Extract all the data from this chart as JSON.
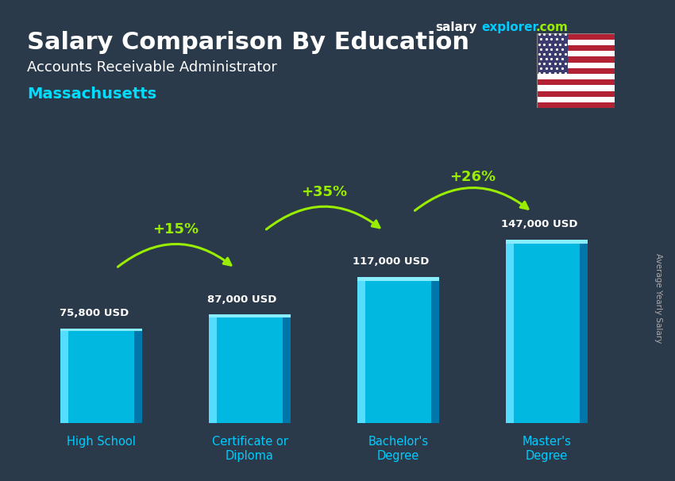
{
  "title_line1": "Salary Comparison By Education",
  "subtitle": "Accounts Receivable Administrator",
  "location": "Massachusetts",
  "ylabel": "Average Yearly Salary",
  "categories": [
    "High School",
    "Certificate or\nDiploma",
    "Bachelor's\nDegree",
    "Master's\nDegree"
  ],
  "values": [
    75800,
    87000,
    117000,
    147000
  ],
  "value_labels": [
    "75,800 USD",
    "87,000 USD",
    "117,000 USD",
    "147,000 USD"
  ],
  "pct_labels": [
    "+15%",
    "+35%",
    "+26%"
  ],
  "bar_color_main": "#00aadd",
  "bar_color_left": "#00ccff",
  "bar_color_right": "#0077aa",
  "bar_color_top": "#55ddff",
  "bg_color": "#2a3a4a",
  "title_color": "#ffffff",
  "subtitle_color": "#ffffff",
  "location_color": "#00ddff",
  "value_label_color": "#ffffff",
  "pct_color": "#99ee00",
  "arrow_color": "#99ee00",
  "ylabel_color": "#aaaaaa",
  "watermark_salary_color": "#ffffff",
  "watermark_explorer_color": "#00ccff",
  "watermark_com_color": "#99ee00",
  "bar_width": 0.55,
  "ylim": [
    0,
    200000
  ],
  "bar_3d_depth": 0.08
}
